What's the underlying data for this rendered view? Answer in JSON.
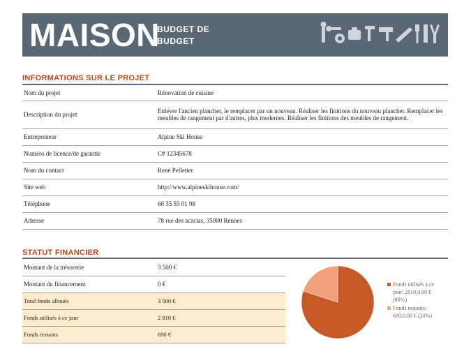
{
  "banner": {
    "title": "MAISON",
    "subtitle_line1": "BUDGET DE",
    "subtitle_line2": "BUDGET",
    "background": "#5a6775",
    "decoration": "tools-silhouette-icons"
  },
  "project": {
    "heading": "INFORMATIONS SUR LE PROJET",
    "rows": [
      {
        "label": "Nom du projet",
        "value": "Rénovation de cuisine"
      },
      {
        "label": "Description du projet",
        "value": "Enlever l'ancien plancher, le remplacer par un nouveau.  Réaliser les finitions du nouveau plancher. Remplacer les meubles de rangement par d'autres, plus modernes.  Réaliser les finitions des meubles de rangement."
      },
      {
        "label": "Entrepreneur",
        "value": "Alpine Ski House"
      },
      {
        "label": "Numéro de licence/de garantie",
        "value": "C# 12345678"
      },
      {
        "label": "Nom du contact",
        "value": "René Pelletier"
      },
      {
        "label": "Site web",
        "value": "http://www.alpineskihouse.com/"
      },
      {
        "label": "Téléphone",
        "value": "60 35 55 01 98"
      },
      {
        "label": "Adresse",
        "value": "78 rue des acacias, 35000 Rennes"
      }
    ]
  },
  "finance": {
    "heading": "STATUT FINANCIER",
    "rows": [
      {
        "label": "Montant de la trésorerie",
        "value": "3 500 €"
      },
      {
        "label": "Montant du financement",
        "value": "0 €"
      },
      {
        "label": "Total fonds alloués",
        "value": "3 500 €"
      },
      {
        "label": "Fonds utilisés à ce jour",
        "value": "2 810 €"
      },
      {
        "label": "Fonds restants",
        "value": "690 €"
      }
    ],
    "highlight_color": "#fdeccd"
  },
  "chart_data": {
    "type": "pie",
    "slices": [
      {
        "label": "Fonds utilisés à ce jour: 2810,0.00 € (80%)",
        "value": 80,
        "color": "#c65a26"
      },
      {
        "label": "Fonds restants: 690,0.00 € (20%)",
        "value": 20,
        "color": "#f2a07a"
      }
    ],
    "legend_lines": [
      [
        "Fonds utilisés à ce",
        "jour: 2810,0.00 €",
        "(80%)"
      ],
      [
        "Fonds restants:",
        "690,0.00 € (20%)"
      ]
    ],
    "legend_position": "right"
  }
}
